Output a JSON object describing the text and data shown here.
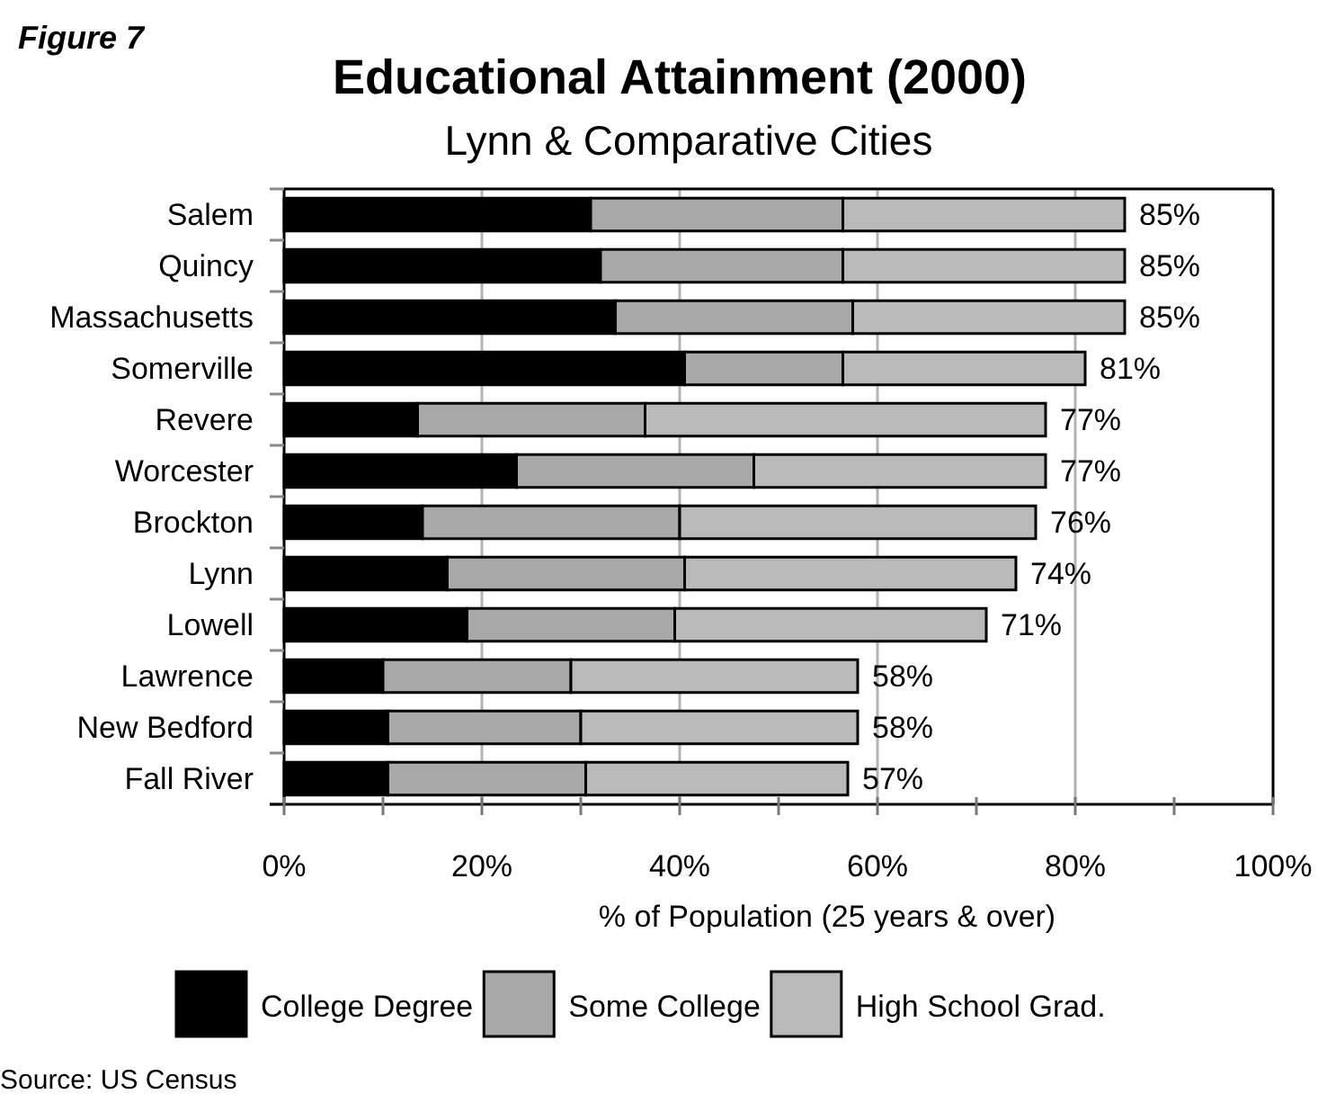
{
  "chart_data": {
    "type": "bar",
    "orientation": "horizontal",
    "stacked": true,
    "title": "Educational Attainment (2000)",
    "subtitle": "Lynn & Comparative Cities",
    "xlabel": "% of Population (25 years & over)",
    "annotations": [
      "Figure 7",
      "Source: US Census"
    ],
    "categories": [
      "Salem",
      "Quincy",
      "Massachusetts",
      "Somerville",
      "Revere",
      "Worcester",
      "Brockton",
      "Lynn",
      "Lowell",
      "Lawrence",
      "New Bedford",
      "Fall River"
    ],
    "series": [
      {
        "name": "College Degree",
        "color": "#000000",
        "values": [
          31,
          32,
          33.5,
          40.5,
          13.5,
          23.5,
          14,
          16.5,
          18.5,
          10,
          10.5,
          10.5
        ]
      },
      {
        "name": "Some College",
        "color": "#a8a8a8",
        "values": [
          25.5,
          24.5,
          24,
          16,
          23,
          24,
          26,
          24,
          21,
          19,
          19.5,
          20
        ]
      },
      {
        "name": "High School Grad.",
        "color": "#b9b9b9",
        "values": [
          28.5,
          28.5,
          27.5,
          24.5,
          40.5,
          29.5,
          36,
          33.5,
          31.5,
          29,
          28,
          26.5
        ]
      }
    ],
    "totals": [
      "85%",
      "85%",
      "85%",
      "81%",
      "77%",
      "77%",
      "76%",
      "74%",
      "71%",
      "58%",
      "58%",
      "57%"
    ],
    "xlim": [
      0,
      100
    ],
    "xticks": [
      {
        "value": 0,
        "label": "0%"
      },
      {
        "value": 10,
        "label": null
      },
      {
        "value": 20,
        "label": "20%"
      },
      {
        "value": 30,
        "label": null
      },
      {
        "value": 40,
        "label": "40%"
      },
      {
        "value": 50,
        "label": null
      },
      {
        "value": 60,
        "label": "60%"
      },
      {
        "value": 70,
        "label": null
      },
      {
        "value": 80,
        "label": "80%"
      },
      {
        "value": 90,
        "label": null
      },
      {
        "value": 100,
        "label": "100%"
      }
    ],
    "grid": "x",
    "legend": "bottom"
  }
}
